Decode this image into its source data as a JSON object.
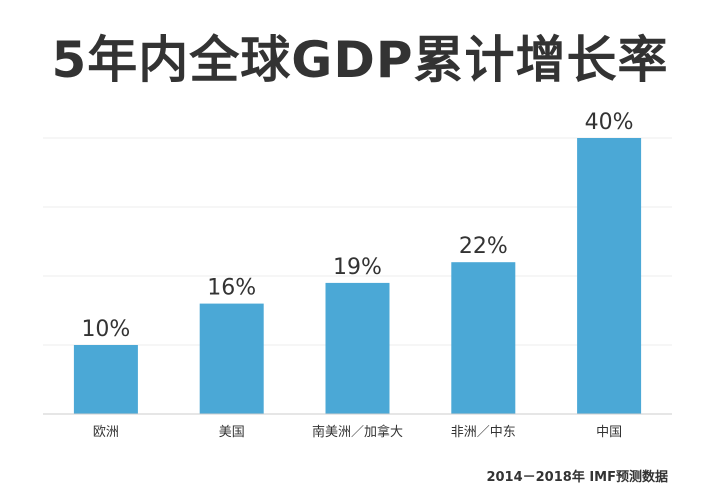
{
  "title": "5年内全球GDP累计增长率",
  "source": "2014－2018年 IMF预测数据",
  "colors": {
    "bar": "#4BA8D6",
    "grid": "#ececec",
    "text": "#333333",
    "axis": "#cccccc"
  },
  "chart_data": {
    "type": "bar",
    "title": "5年内全球GDP累计增长率",
    "categories": [
      "欧洲",
      "美国",
      "南美洲／加拿大",
      "非洲／中东",
      "中国"
    ],
    "values": [
      10,
      16,
      19,
      22,
      40
    ],
    "value_labels": [
      "10%",
      "16%",
      "19%",
      "22%",
      "40%"
    ],
    "xlabel": "",
    "ylabel": "",
    "ylim": [
      0,
      40
    ],
    "grid": true,
    "legend": "none"
  }
}
